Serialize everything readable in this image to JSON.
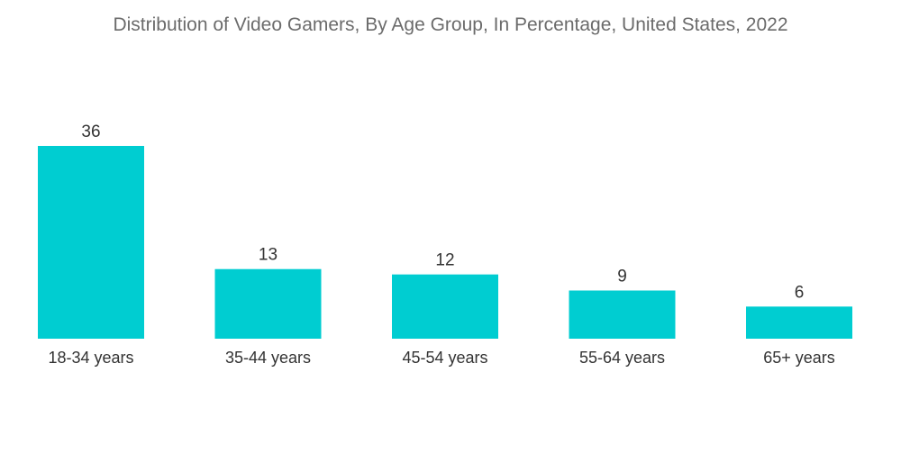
{
  "chart_data": {
    "type": "bar",
    "title": "Distribution of Video Gamers, By Age Group, In Percentage, United States, 2022",
    "xlabel": "",
    "ylabel": "",
    "categories": [
      "18-34 years",
      "35-44 years",
      "45-54 years",
      "55-64 years",
      "65+ years"
    ],
    "values": [
      36,
      13,
      12,
      9,
      6
    ],
    "ylim": [
      0,
      36
    ],
    "grid": false,
    "legend": "none",
    "bar_color": "#00cdd1"
  }
}
